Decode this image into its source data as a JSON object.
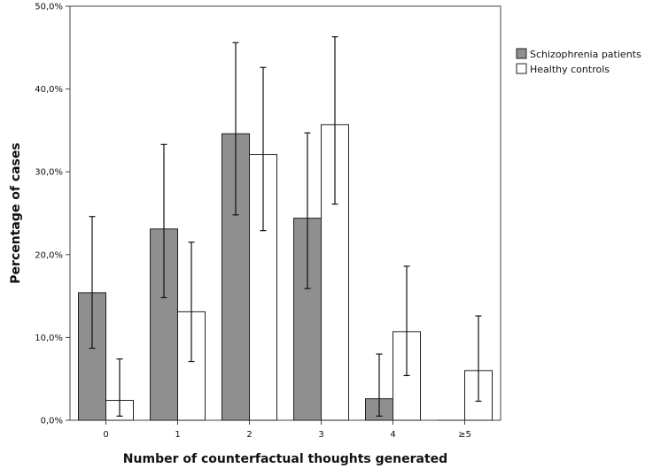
{
  "chart_data": {
    "type": "bar",
    "title": "",
    "xlabel": "Number of counterfactual thoughts generated",
    "ylabel": "Percentage of cases",
    "categories": [
      "0",
      "1",
      "2",
      "3",
      "4",
      "≥5"
    ],
    "ylim": [
      0,
      50
    ],
    "yticks": [
      0,
      10,
      20,
      30,
      40,
      50
    ],
    "ytick_labels": [
      "0,0%",
      "10,0%",
      "20,0%",
      "30,0%",
      "40,0%",
      "50,0%"
    ],
    "grid": false,
    "legend_position": "top-right",
    "series": [
      {
        "name": "Schizophrenia patients",
        "color": "#8f8f8f",
        "values": [
          15.4,
          23.1,
          34.6,
          24.4,
          2.6,
          0.0
        ],
        "error_low": [
          8.7,
          14.8,
          24.8,
          15.9,
          0.5,
          null
        ],
        "error_high": [
          24.6,
          33.3,
          45.6,
          34.7,
          8.0,
          null
        ]
      },
      {
        "name": "Healthy controls",
        "color": "#ffffff",
        "values": [
          2.4,
          13.1,
          32.1,
          35.7,
          10.7,
          6.0
        ],
        "error_low": [
          0.5,
          7.1,
          22.9,
          26.1,
          5.4,
          2.3
        ],
        "error_high": [
          7.4,
          21.5,
          42.6,
          46.3,
          18.6,
          12.6
        ]
      }
    ]
  }
}
